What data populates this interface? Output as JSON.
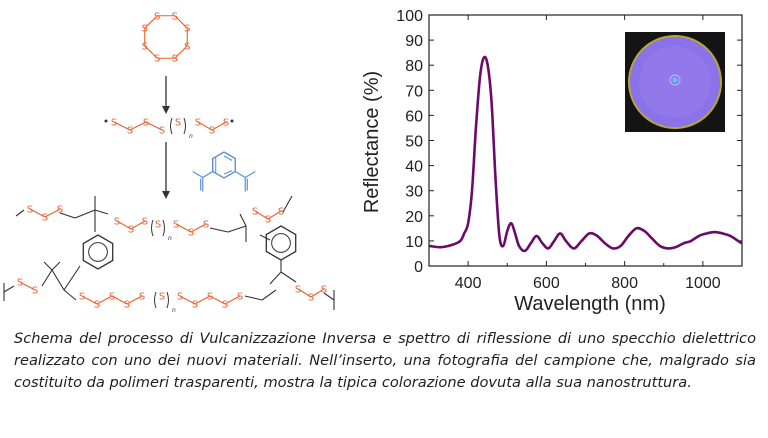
{
  "scheme": {
    "sulfur_label": "S",
    "subscript_n": "n",
    "colors": {
      "sulfur": "#e8602c",
      "bond": "#333333",
      "crosslinker": "#5b8fd0"
    }
  },
  "chart_data": {
    "type": "line",
    "xlabel": "Wavelength (nm)",
    "ylabel": "Reflectance (%)",
    "xlim": [
      300,
      1100
    ],
    "ylim": [
      0,
      100
    ],
    "x_ticks": [
      "400",
      "600",
      "800",
      "1000"
    ],
    "y_ticks": [
      "0",
      "10",
      "20",
      "30",
      "40",
      "50",
      "60",
      "70",
      "80",
      "90",
      "100"
    ],
    "grid": false,
    "series": [
      {
        "color": "#6b0a6b",
        "x": [
          300,
          330,
          360,
          380,
          390,
          400,
          410,
          420,
          430,
          440,
          450,
          460,
          470,
          480,
          490,
          500,
          510,
          520,
          530,
          545,
          560,
          575,
          590,
          605,
          620,
          635,
          650,
          670,
          690,
          710,
          730,
          750,
          770,
          790,
          810,
          830,
          850,
          870,
          890,
          910,
          930,
          950,
          970,
          990,
          1010,
          1030,
          1050,
          1070,
          1090,
          1100
        ],
        "y": [
          8,
          7.5,
          8.5,
          10,
          13,
          17,
          30,
          55,
          75,
          83,
          80,
          65,
          35,
          12,
          8,
          14,
          17,
          13,
          8,
          6,
          9,
          12,
          9,
          7,
          10,
          13,
          10,
          7,
          10,
          13,
          12,
          9,
          7,
          8,
          12,
          15,
          14,
          11,
          8,
          7,
          7.5,
          9,
          10,
          12,
          13,
          13.5,
          13,
          12,
          10,
          9
        ]
      }
    ],
    "inset": "photograph of sample"
  },
  "caption": {
    "text": "Schema del processo di Vulcanizzazione Inversa e spettro di riflessione di uno specchio dielettrico realizzato con uno dei nuovi materiali. Nell’inserto, una fotografia del campione che, malgrado sia costituito da polimeri trasparenti, mostra la tipica colorazione dovuta alla sua nanostruttura."
  }
}
